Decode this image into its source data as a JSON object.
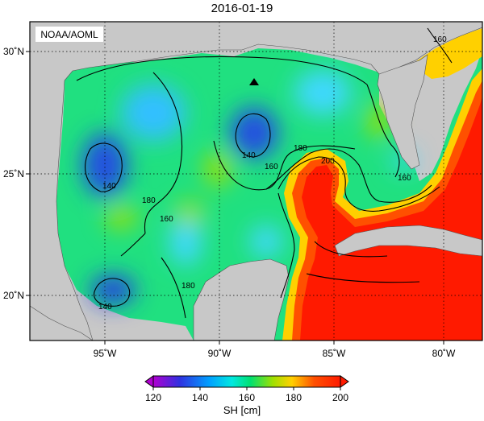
{
  "title": "2016-01-19",
  "watermark": "NOAA/AOML",
  "colorbar": {
    "label": "SH [cm]",
    "ticks": [
      "120",
      "140",
      "160",
      "180",
      "200"
    ],
    "colors": [
      "#b000d0",
      "#3030e0",
      "#00c8ff",
      "#00e070",
      "#a0e000",
      "#ffd000",
      "#ff5000",
      "#ff1a00"
    ]
  },
  "axes": {
    "x_ticks": [
      "95˚W",
      "90˚W",
      "85˚W",
      "80˚W"
    ],
    "y_ticks": [
      "30˚N",
      "25˚N",
      "20˚N"
    ]
  },
  "contour_labels": [
    {
      "text": "160",
      "name": "contour-label-160-ne"
    },
    {
      "text": "140",
      "name": "contour-label-140-west"
    },
    {
      "text": "140",
      "name": "contour-label-140-central"
    },
    {
      "text": "160",
      "name": "contour-label-160-central"
    },
    {
      "text": "180",
      "name": "contour-label-180-central"
    },
    {
      "text": "200",
      "name": "contour-label-200-loop"
    },
    {
      "text": "180",
      "name": "contour-label-180-west"
    },
    {
      "text": "160",
      "name": "contour-label-160-west"
    },
    {
      "text": "160",
      "name": "contour-label-160-florida"
    },
    {
      "text": "180",
      "name": "contour-label-180-south"
    },
    {
      "text": "140",
      "name": "contour-label-140-south"
    }
  ]
}
